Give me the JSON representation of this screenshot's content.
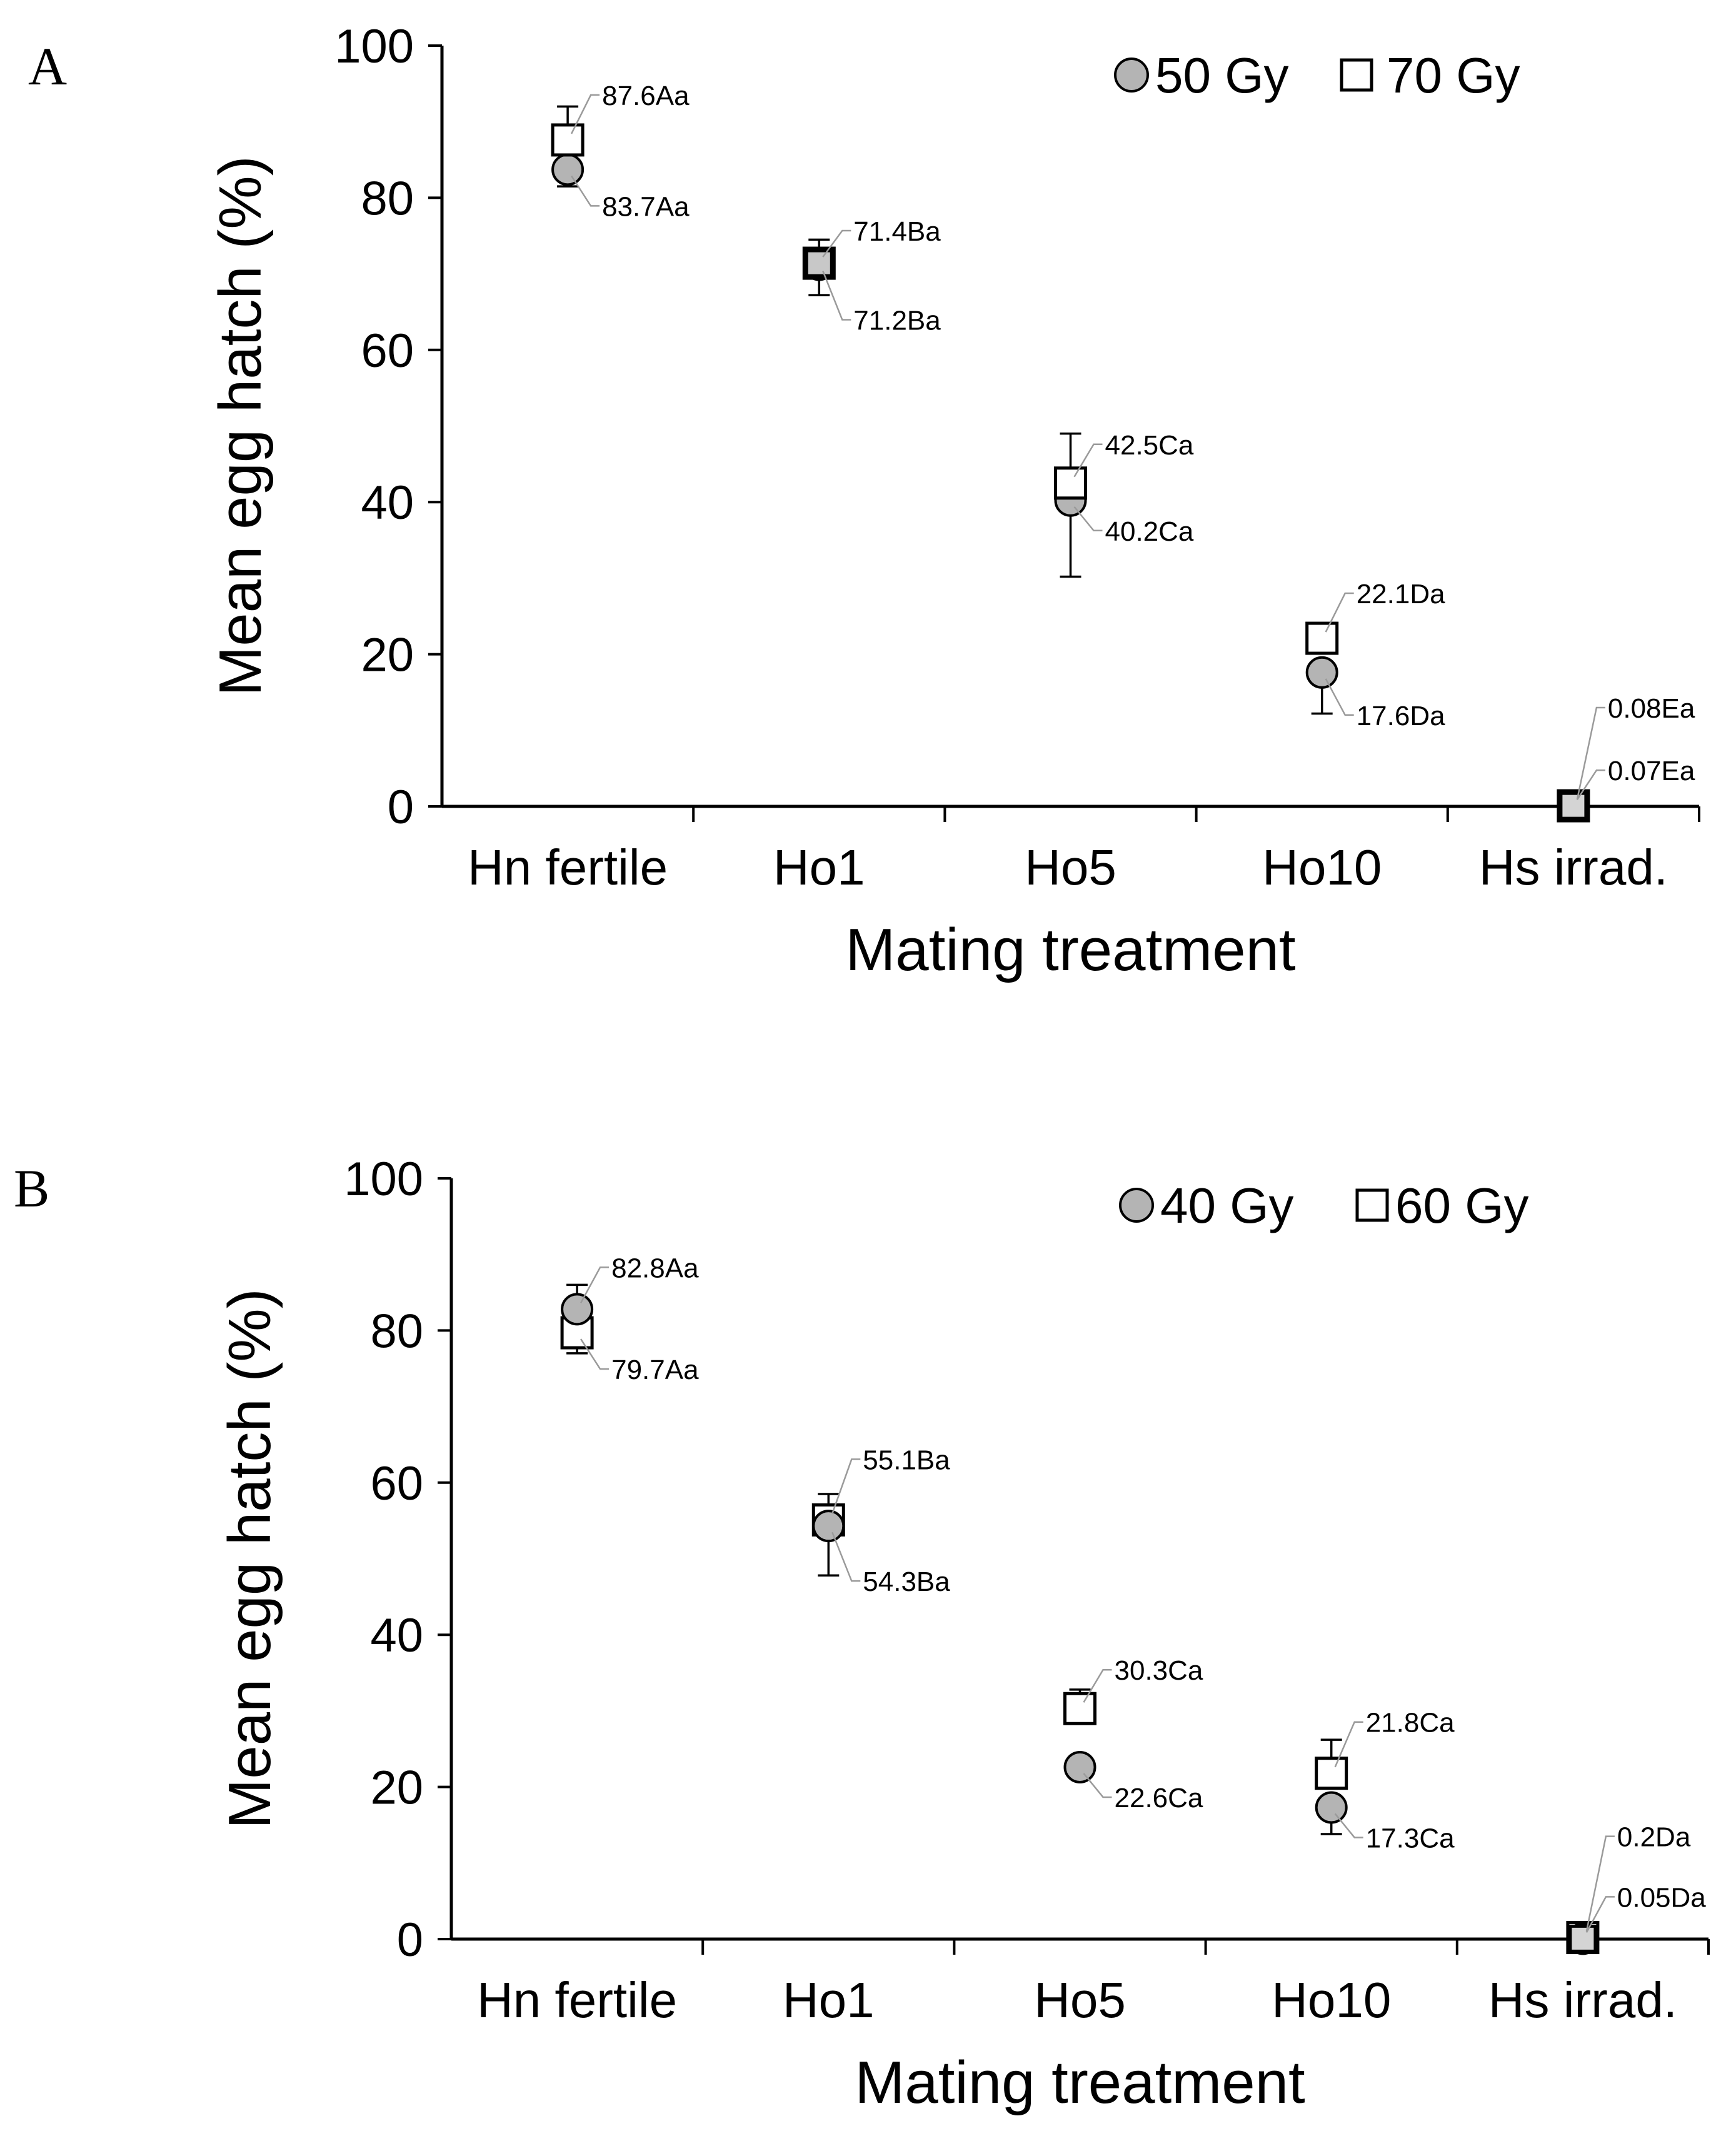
{
  "chart_data": [
    {
      "type": "scatter",
      "panel": "A",
      "xlabel": "Mating treatment",
      "ylabel": "Mean egg hatch (%)",
      "ylim": [
        0,
        100
      ],
      "yticks": [
        "0",
        "20",
        "40",
        "60",
        "80",
        "100"
      ],
      "categories": [
        "Hn fertile",
        "Ho1",
        "Ho5",
        "Ho10",
        "Hs irrad."
      ],
      "legend_position": "top-right",
      "series": [
        {
          "name": "50 Gy",
          "marker": "circle",
          "color": "#b4b4b4",
          "values": [
            83.7,
            71.2,
            40.2,
            17.6,
            0.07
          ],
          "error_low": [
            81.5,
            67.2,
            30.2,
            12.2,
            0.07
          ],
          "error_high": [
            83.7,
            71.2,
            40.2,
            17.6,
            0.07
          ],
          "labels": [
            "83.7Aa",
            "71.2Ba",
            "40.2Ca",
            "17.6Da",
            "0.07Ea"
          ]
        },
        {
          "name": "70 Gy",
          "marker": "square",
          "color": "#ffffff",
          "values": [
            87.6,
            71.4,
            42.5,
            22.1,
            0.08
          ],
          "error_low": [
            87.6,
            71.4,
            42.5,
            22.1,
            0.08
          ],
          "error_high": [
            92.0,
            74.5,
            49.0,
            22.1,
            0.08
          ],
          "labels": [
            "87.6Aa",
            "71.4Ba",
            "42.5Ca",
            "22.1Da",
            "0.08Ea"
          ]
        }
      ]
    },
    {
      "type": "scatter",
      "panel": "B",
      "xlabel": "Mating treatment",
      "ylabel": "Mean egg hatch (%)",
      "ylim": [
        0,
        100
      ],
      "yticks": [
        "0",
        "20",
        "40",
        "60",
        "80",
        "100"
      ],
      "categories": [
        "Hn fertile",
        "Ho1",
        "Ho5",
        "Ho10",
        "Hs irrad."
      ],
      "legend_position": "top-right",
      "series": [
        {
          "name": "40 Gy",
          "marker": "circle",
          "color": "#b4b4b4",
          "values": [
            82.8,
            54.3,
            22.6,
            17.3,
            0.05
          ],
          "error_low": [
            82.8,
            47.8,
            22.6,
            13.8,
            0.05
          ],
          "error_high": [
            86.0,
            54.3,
            22.6,
            17.3,
            0.05
          ],
          "labels": [
            "82.8Aa",
            "54.3Ba",
            "22.6Ca",
            "17.3Ca",
            "0.05Da"
          ]
        },
        {
          "name": "60 Gy",
          "marker": "square",
          "color": "#ffffff",
          "values": [
            79.7,
            55.1,
            30.3,
            21.8,
            0.2
          ],
          "error_low": [
            77.0,
            55.1,
            30.3,
            21.8,
            0.2
          ],
          "error_high": [
            79.7,
            58.5,
            32.8,
            26.2,
            0.2
          ],
          "labels": [
            "79.7Aa",
            "55.1Ba",
            "30.3Ca",
            "21.8Ca",
            "0.2Da"
          ]
        }
      ]
    }
  ]
}
